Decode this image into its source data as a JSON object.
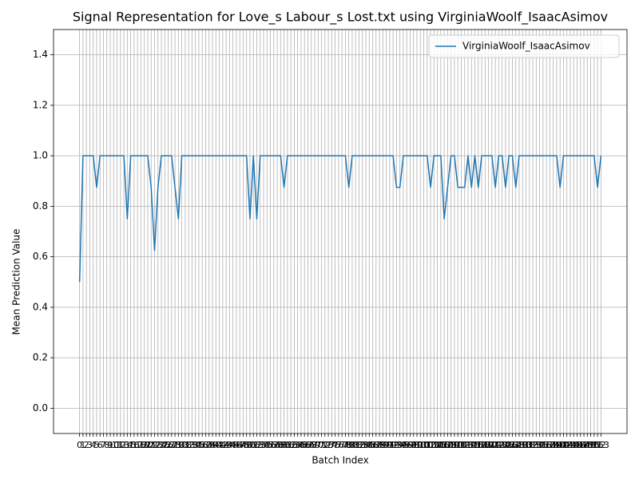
{
  "chart_data": {
    "type": "line",
    "title": "Signal Representation for Love_s Labour_s Lost.txt using VirginiaWoolf_IsaacAsimov",
    "x_label": "Batch Index",
    "y_label": "Mean Prediction Value",
    "x": [
      0,
      1,
      2,
      3,
      4,
      5,
      6,
      7,
      8,
      9,
      10,
      11,
      12,
      13,
      14,
      15,
      16,
      17,
      18,
      19,
      20,
      21,
      22,
      23,
      24,
      25,
      26,
      27,
      28,
      29,
      30,
      31,
      32,
      33,
      34,
      35,
      36,
      37,
      38,
      39,
      40,
      41,
      42,
      43,
      44,
      45,
      46,
      47,
      48,
      49,
      50,
      51,
      52,
      53,
      54,
      55,
      56,
      57,
      58,
      59,
      60,
      61,
      62,
      63,
      64,
      65,
      66,
      67,
      68,
      69,
      70,
      71,
      72,
      73,
      74,
      75,
      76,
      77,
      78,
      79,
      80,
      81,
      82,
      83,
      84,
      85,
      86,
      87,
      88,
      89,
      90,
      91,
      92,
      93,
      94,
      95,
      96,
      97,
      98,
      99,
      100,
      101,
      102,
      103,
      104,
      105,
      106,
      107,
      108,
      109,
      110,
      111,
      112,
      113,
      114,
      115,
      116,
      117,
      118,
      119,
      120,
      121,
      122,
      123,
      124,
      125,
      126,
      127,
      128,
      129,
      130,
      131,
      132,
      133,
      134,
      135,
      136,
      137,
      138,
      139,
      140,
      141,
      142,
      143,
      144,
      145,
      146,
      147,
      148,
      149,
      150,
      151,
      152,
      153
    ],
    "series": [
      {
        "name": "VirginiaWoolf_IsaacAsimov",
        "color": "#1f77b4",
        "values": [
          0.5,
          1,
          1,
          1,
          1,
          0.875,
          1,
          1,
          1,
          1,
          1,
          1,
          1,
          1,
          0.75,
          1,
          1,
          1,
          1,
          1,
          1,
          0.875,
          0.625,
          0.875,
          1,
          1,
          1,
          1,
          0.875,
          0.75,
          1,
          1,
          1,
          1,
          1,
          1,
          1,
          1,
          1,
          1,
          1,
          1,
          1,
          1,
          1,
          1,
          1,
          1,
          1,
          1,
          0.75,
          1,
          0.75,
          1,
          1,
          1,
          1,
          1,
          1,
          1,
          0.875,
          1,
          1,
          1,
          1,
          1,
          1,
          1,
          1,
          1,
          1,
          1,
          1,
          1,
          1,
          1,
          1,
          1,
          1,
          0.875,
          1,
          1,
          1,
          1,
          1,
          1,
          1,
          1,
          1,
          1,
          1,
          1,
          1,
          0.875,
          0.875,
          1,
          1,
          1,
          1,
          1,
          1,
          1,
          1,
          0.875,
          1,
          1,
          1,
          0.75,
          0.875,
          1,
          1,
          0.875,
          0.875,
          0.875,
          1,
          0.875,
          1,
          0.875,
          1,
          1,
          1,
          1,
          0.875,
          1,
          1,
          0.875,
          1,
          1,
          0.875,
          1,
          1,
          1,
          1,
          1,
          1,
          1,
          1,
          1,
          1,
          1,
          1,
          0.875,
          1,
          1,
          1,
          1,
          1,
          1,
          1,
          1,
          1,
          1,
          0.875,
          1
        ]
      }
    ],
    "xlim": [
      -7.65,
      160.65
    ],
    "xticks": [
      0,
      1,
      2,
      3,
      4,
      5,
      6,
      7,
      8,
      9,
      10,
      11,
      12,
      13,
      14,
      15,
      16,
      17,
      18,
      19,
      20,
      21,
      22,
      23,
      24,
      25,
      26,
      27,
      28,
      29,
      30,
      31,
      32,
      33,
      34,
      35,
      36,
      37,
      38,
      39,
      40,
      41,
      42,
      43,
      44,
      45,
      46,
      47,
      48,
      49,
      50,
      51,
      52,
      53,
      54,
      55,
      56,
      57,
      58,
      59,
      60,
      61,
      62,
      63,
      64,
      65,
      66,
      67,
      68,
      69,
      70,
      71,
      72,
      73,
      74,
      75,
      76,
      77,
      78,
      79,
      80,
      81,
      82,
      83,
      84,
      85,
      86,
      87,
      88,
      89,
      90,
      91,
      92,
      93,
      94,
      95,
      96,
      97,
      98,
      99,
      100,
      101,
      102,
      103,
      104,
      105,
      106,
      107,
      108,
      109,
      110,
      111,
      112,
      113,
      114,
      115,
      116,
      117,
      118,
      119,
      120,
      121,
      122,
      123,
      124,
      125,
      126,
      127,
      128,
      129,
      130,
      131,
      132,
      133,
      134,
      135,
      136,
      137,
      138,
      139,
      140,
      141,
      142,
      143,
      144,
      145,
      146,
      147,
      148,
      149,
      150,
      151,
      152,
      153
    ],
    "ylim": [
      -0.1,
      1.5
    ],
    "yticks": [
      {
        "value": 0,
        "label": "0.0"
      },
      {
        "value": 0.2,
        "label": "0.2"
      },
      {
        "value": 0.4,
        "label": "0.4"
      },
      {
        "value": 0.6,
        "label": "0.6"
      },
      {
        "value": 0.8,
        "label": "0.8"
      },
      {
        "value": 1.0,
        "label": "1.0"
      },
      {
        "value": 1.2,
        "label": "1.2"
      },
      {
        "value": 1.4,
        "label": "1.4"
      }
    ],
    "grid": true,
    "legend_position": "upper-right"
  }
}
